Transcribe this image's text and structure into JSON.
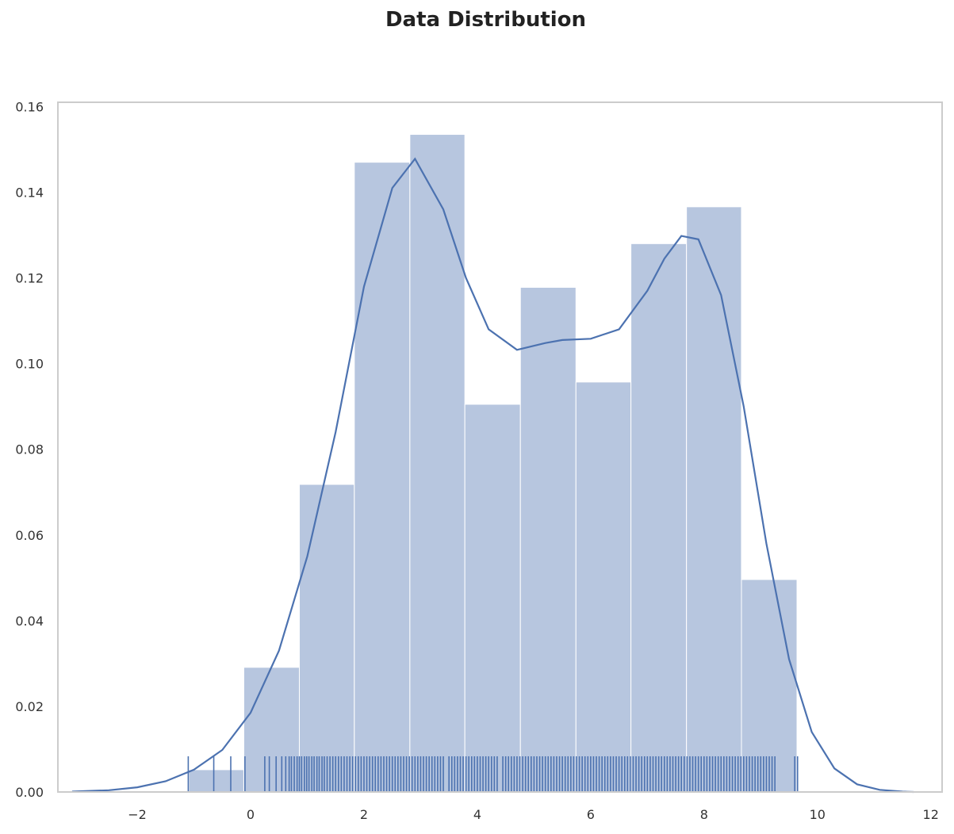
{
  "chart_data": {
    "type": "histogram",
    "title": "Data Distribution",
    "xlabel": "",
    "ylabel": "",
    "xlim": [
      -3.4,
      12.2
    ],
    "ylim": [
      0,
      0.161
    ],
    "xticks": [
      -2,
      0,
      2,
      4,
      6,
      8,
      10,
      12
    ],
    "xtick_labels": [
      "−2",
      "0",
      "2",
      "4",
      "6",
      "8",
      "10",
      "12"
    ],
    "yticks": [
      0,
      0.02,
      0.04,
      0.06,
      0.08,
      0.1,
      0.12,
      0.14,
      0.16
    ],
    "ytick_labels": [
      "0.00",
      "0.02",
      "0.04",
      "0.06",
      "0.08",
      "0.10",
      "0.12",
      "0.14",
      "0.16"
    ],
    "grid": false,
    "colors": {
      "bar": "#b7c6df",
      "line": "#4c72b0",
      "axis": "#cccccc",
      "bar_edge": "#ffffff"
    },
    "bins": [
      {
        "x0": -1.09,
        "x1": -0.12,
        "density": 0.0052
      },
      {
        "x0": -0.12,
        "x1": 0.86,
        "density": 0.0291
      },
      {
        "x0": 0.86,
        "x1": 1.83,
        "density": 0.0718
      },
      {
        "x0": 1.83,
        "x1": 2.81,
        "density": 0.147
      },
      {
        "x0": 2.81,
        "x1": 3.78,
        "density": 0.1535
      },
      {
        "x0": 3.78,
        "x1": 4.76,
        "density": 0.0905
      },
      {
        "x0": 4.76,
        "x1": 5.74,
        "density": 0.1178
      },
      {
        "x0": 5.74,
        "x1": 6.71,
        "density": 0.0957
      },
      {
        "x0": 6.71,
        "x1": 7.69,
        "density": 0.128
      },
      {
        "x0": 7.69,
        "x1": 8.66,
        "density": 0.1366
      },
      {
        "x0": 8.66,
        "x1": 9.64,
        "density": 0.0496
      }
    ],
    "kde": {
      "x": [
        -3.15,
        -2.5,
        -2.0,
        -1.5,
        -1.0,
        -0.5,
        0.0,
        0.5,
        1.0,
        1.5,
        2.0,
        2.5,
        2.9,
        3.4,
        3.8,
        4.2,
        4.7,
        5.2,
        5.5,
        6.0,
        6.5,
        7.0,
        7.3,
        7.6,
        7.9,
        8.3,
        8.7,
        9.1,
        9.5,
        9.9,
        10.3,
        10.7,
        11.1,
        11.5,
        11.7
      ],
      "y": [
        0.0001,
        0.0004,
        0.0011,
        0.0025,
        0.0052,
        0.0098,
        0.0185,
        0.033,
        0.055,
        0.084,
        0.118,
        0.141,
        0.1478,
        0.136,
        0.12,
        0.108,
        0.1032,
        0.1048,
        0.1055,
        0.1058,
        0.108,
        0.117,
        0.1245,
        0.1298,
        0.129,
        0.116,
        0.09,
        0.058,
        0.031,
        0.014,
        0.0055,
        0.0018,
        0.0005,
        0.0001,
        0.0
      ]
    },
    "rug": [
      -1.1,
      -0.65,
      -0.35,
      -0.1,
      0.25,
      0.33,
      0.45,
      0.55,
      0.62,
      0.68,
      0.72,
      0.77,
      0.82,
      0.86,
      0.9,
      0.95,
      0.99,
      1.03,
      1.08,
      1.12,
      1.17,
      1.21,
      1.26,
      1.3,
      1.35,
      1.4,
      1.45,
      1.5,
      1.55,
      1.6,
      1.65,
      1.7,
      1.75,
      1.8,
      1.85,
      1.9,
      1.95,
      2.0,
      2.05,
      2.1,
      2.15,
      2.2,
      2.25,
      2.3,
      2.35,
      2.4,
      2.45,
      2.5,
      2.55,
      2.6,
      2.65,
      2.7,
      2.75,
      2.8,
      2.85,
      2.9,
      2.95,
      3.0,
      3.05,
      3.1,
      3.15,
      3.2,
      3.25,
      3.3,
      3.35,
      3.4,
      3.5,
      3.55,
      3.6,
      3.65,
      3.7,
      3.75,
      3.8,
      3.85,
      3.9,
      3.95,
      4.0,
      4.05,
      4.1,
      4.15,
      4.2,
      4.25,
      4.3,
      4.35,
      4.45,
      4.5,
      4.55,
      4.6,
      4.65,
      4.7,
      4.75,
      4.8,
      4.85,
      4.9,
      4.95,
      5.0,
      5.05,
      5.1,
      5.15,
      5.2,
      5.25,
      5.3,
      5.35,
      5.4,
      5.45,
      5.5,
      5.55,
      5.6,
      5.65,
      5.7,
      5.75,
      5.8,
      5.85,
      5.9,
      5.95,
      6.0,
      6.05,
      6.1,
      6.15,
      6.2,
      6.25,
      6.3,
      6.35,
      6.4,
      6.45,
      6.5,
      6.55,
      6.6,
      6.65,
      6.7,
      6.75,
      6.8,
      6.85,
      6.9,
      6.95,
      7.0,
      7.05,
      7.1,
      7.15,
      7.2,
      7.25,
      7.3,
      7.35,
      7.4,
      7.45,
      7.5,
      7.55,
      7.6,
      7.65,
      7.7,
      7.75,
      7.8,
      7.85,
      7.9,
      7.95,
      8.0,
      8.05,
      8.1,
      8.15,
      8.2,
      8.25,
      8.3,
      8.35,
      8.4,
      8.45,
      8.5,
      8.55,
      8.6,
      8.65,
      8.7,
      8.75,
      8.8,
      8.85,
      8.9,
      8.95,
      9.0,
      9.05,
      9.1,
      9.15,
      9.2,
      9.25,
      9.6,
      9.65
    ]
  }
}
